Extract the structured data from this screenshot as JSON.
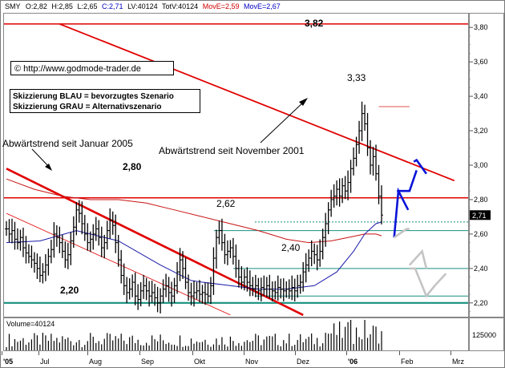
{
  "chart_data": {
    "type": "line",
    "header": {
      "symbol": "SMY",
      "o_label": "O:",
      "o": "2,82",
      "h_label": "H:",
      "h": "2,85",
      "l_label": "L:",
      "l": "2,65",
      "c_label": "C:",
      "c": "2,71",
      "lv_label": "LV:",
      "lv": "40124",
      "totv_label": "TotV:",
      "totv": "40124",
      "move1_label": "MovE=",
      "move1": "2,59",
      "move2_label": "MovE=",
      "move2": "2,67"
    },
    "copyright": "© http://www.godmode-trader.de",
    "legend_box": {
      "line1": "Skizzierung BLAU = bevorzugtes Szenario",
      "line2": "Skizzierung GRAU = Alternativszenario"
    },
    "annotations": {
      "trend_jan2005": "Abwärtstrend seit Januar 2005",
      "trend_nov2001": "Abwärtstrend seit November 2001",
      "level_382": "3,82",
      "level_333": "3,33",
      "level_280": "2,80",
      "level_262": "2,62",
      "level_240": "2,40",
      "level_220": "2,20"
    },
    "y_axis": {
      "ticks": [
        "3,80",
        "3,60",
        "3,40",
        "3,20",
        "3,00",
        "2,80",
        "2,60",
        "2,40",
        "2,20"
      ],
      "tick_values": [
        3.8,
        3.6,
        3.4,
        3.2,
        3.0,
        2.8,
        2.6,
        2.4,
        2.2
      ],
      "range": [
        2.12,
        3.88
      ],
      "last_price": "2,71",
      "last_value": 2.71
    },
    "x_axis": {
      "labels": [
        "'05",
        "Jul",
        "Aug",
        "Sep",
        "Okt",
        "Nov",
        "Dez",
        "'06",
        "Feb",
        "Mrz"
      ]
    },
    "volume": {
      "label": "Volume=40124",
      "scale_label": "125000"
    },
    "price_series": [
      2.63,
      2.6,
      2.62,
      2.57,
      2.55,
      2.58,
      2.52,
      2.49,
      2.47,
      2.45,
      2.43,
      2.4,
      2.36,
      2.38,
      2.42,
      2.47,
      2.51,
      2.6,
      2.58,
      2.55,
      2.5,
      2.45,
      2.48,
      2.56,
      2.64,
      2.74,
      2.72,
      2.66,
      2.6,
      2.55,
      2.57,
      2.6,
      2.63,
      2.58,
      2.52,
      2.55,
      2.62,
      2.68,
      2.65,
      2.55,
      2.45,
      2.36,
      2.3,
      2.26,
      2.28,
      2.32,
      2.24,
      2.22,
      2.27,
      2.3,
      2.27,
      2.24,
      2.26,
      2.23,
      2.2,
      2.24,
      2.28,
      2.3,
      2.26,
      2.24,
      2.3,
      2.38,
      2.45,
      2.4,
      2.32,
      2.26,
      2.24,
      2.26,
      2.27,
      2.25,
      2.26,
      2.25,
      2.24,
      2.3,
      2.46,
      2.58,
      2.62,
      2.55,
      2.48,
      2.5,
      2.52,
      2.47,
      2.4,
      2.35,
      2.32,
      2.35,
      2.32,
      2.3,
      2.28,
      2.3,
      2.27,
      2.29,
      2.28,
      2.3,
      2.28,
      2.27,
      2.26,
      2.29,
      2.28,
      2.27,
      2.28,
      2.27,
      2.29,
      2.27,
      2.3,
      2.32,
      2.38,
      2.42,
      2.46,
      2.5,
      2.48,
      2.45,
      2.5,
      2.58,
      2.66,
      2.74,
      2.8,
      2.82,
      2.86,
      2.82,
      2.88,
      2.85,
      2.9,
      2.98,
      3.04,
      3.12,
      3.2,
      3.3,
      3.24,
      3.1,
      3.0,
      3.05,
      2.95,
      2.82,
      2.71
    ],
    "sma_blue": {
      "x": [
        0,
        12,
        25,
        40,
        55,
        66,
        70,
        80,
        90,
        100,
        110,
        118,
        124,
        128,
        132,
        134
      ],
      "y": [
        2.55,
        2.56,
        2.62,
        2.56,
        2.42,
        2.33,
        2.32,
        2.3,
        2.28,
        2.28,
        2.3,
        2.38,
        2.5,
        2.6,
        2.66,
        2.67
      ]
    },
    "sma_red": {
      "x": [
        0,
        10,
        20,
        30,
        40,
        50,
        60,
        70,
        80,
        90,
        100,
        108,
        116,
        122,
        128,
        132,
        134
      ],
      "y": [
        2.92,
        2.86,
        2.82,
        2.8,
        2.8,
        2.78,
        2.74,
        2.7,
        2.66,
        2.62,
        2.57,
        2.55,
        2.56,
        2.58,
        2.6,
        2.6,
        2.59
      ]
    },
    "trend_lines": {
      "nov2001": {
        "x": [
          19,
          160
        ],
        "y": [
          3.82,
          2.91
        ]
      },
      "jan2005": {
        "x": [
          0,
          106
        ],
        "y": [
          2.98,
          2.13
        ]
      },
      "lower_thin": {
        "x": [
          0,
          80
        ],
        "y": [
          2.72,
          2.13
        ]
      }
    },
    "horizontal_levels": {
      "red": [
        3.82,
        2.81
      ],
      "teal_thick": [
        2.2
      ],
      "teal_thin": [
        2.62,
        2.4,
        2.24
      ],
      "teal_dashed": [
        2.67
      ]
    },
    "level_marker_333": {
      "x": [
        133,
        144
      ],
      "y": [
        3.34,
        3.34
      ]
    },
    "scenario_blue": [
      {
        "x": [
          138.5,
          140,
          143.5
        ],
        "y": [
          2.58,
          2.85,
          2.74
        ]
      },
      {
        "x": [
          139.5,
          144,
          146.5
        ],
        "y": [
          2.85,
          2.85,
          2.97
        ]
      },
      {
        "x": [
          145.5,
          146.5,
          150
        ],
        "y": [
          3.02,
          3.03,
          2.95
        ]
      }
    ],
    "scenario_grey": [
      {
        "x": [
          138.5,
          143,
          144
        ]
      },
      {
        "x": [
          144,
          148.5,
          150
        ]
      },
      {
        "x": [
          144,
          146,
          150,
          153,
          157
        ]
      }
    ]
  }
}
